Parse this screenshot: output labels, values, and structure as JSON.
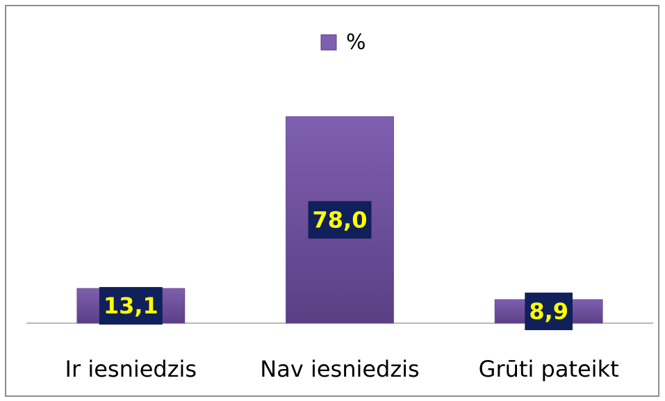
{
  "chart_data": {
    "type": "bar",
    "categories": [
      "Ir iesniedzis",
      "Nav iesniedzis",
      "Grūti pateikt"
    ],
    "series": [
      {
        "name": "%",
        "color": "#7f5fb0",
        "values": [
          13.1,
          78.0,
          8.9
        ],
        "value_labels": [
          "13,1",
          "78,0",
          "8,9"
        ]
      }
    ],
    "ylim": [
      0,
      100
    ],
    "legend": "top"
  }
}
